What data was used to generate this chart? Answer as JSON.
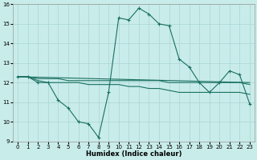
{
  "xlabel": "Humidex (Indice chaleur)",
  "background_color": "#c8ecea",
  "grid_color": "#aad4d2",
  "line_color": "#1a7060",
  "xlim": [
    -0.5,
    23.5
  ],
  "ylim": [
    9,
    16
  ],
  "yticks": [
    9,
    10,
    11,
    12,
    13,
    14,
    15,
    16
  ],
  "xticks": [
    0,
    1,
    2,
    3,
    4,
    5,
    6,
    7,
    8,
    9,
    10,
    11,
    12,
    13,
    14,
    15,
    16,
    17,
    18,
    19,
    20,
    21,
    22,
    23
  ],
  "series1_x": [
    0,
    1,
    2,
    3,
    4,
    5,
    6,
    7,
    8,
    9,
    10,
    11,
    12,
    13,
    14,
    15,
    16,
    17,
    18,
    19,
    20,
    21,
    22,
    23
  ],
  "series1_y": [
    12.3,
    12.3,
    12.0,
    12.0,
    11.1,
    10.7,
    10.0,
    9.9,
    9.2,
    11.5,
    15.3,
    15.2,
    15.8,
    15.5,
    15.0,
    14.9,
    13.2,
    12.8,
    12.0,
    11.5,
    12.0,
    12.6,
    12.4,
    10.9
  ],
  "series2_x": [
    0,
    1,
    2,
    3,
    4,
    5,
    6,
    7,
    8,
    9,
    10,
    11,
    12,
    13,
    14,
    15,
    16,
    17,
    18,
    19,
    20,
    21,
    22,
    23
  ],
  "series2_y": [
    12.3,
    12.3,
    12.1,
    12.0,
    12.0,
    12.0,
    12.0,
    11.9,
    11.9,
    11.9,
    11.9,
    11.8,
    11.8,
    11.7,
    11.7,
    11.6,
    11.5,
    11.5,
    11.5,
    11.5,
    11.5,
    11.5,
    11.5,
    11.4
  ],
  "series3_x": [
    0,
    23
  ],
  "series3_y": [
    12.3,
    12.0
  ],
  "series4_x": [
    0,
    1,
    2,
    3,
    4,
    5,
    6,
    7,
    8,
    9,
    10,
    11,
    12,
    13,
    14,
    15,
    16,
    17,
    18,
    19,
    20,
    21,
    22,
    23
  ],
  "series4_y": [
    12.3,
    12.3,
    12.2,
    12.2,
    12.2,
    12.1,
    12.1,
    12.1,
    12.1,
    12.1,
    12.1,
    12.1,
    12.1,
    12.1,
    12.1,
    12.0,
    12.0,
    12.0,
    12.0,
    12.0,
    12.0,
    12.0,
    12.0,
    11.9
  ],
  "title_fontsize": 6,
  "xlabel_fontsize": 6,
  "tick_fontsize": 5
}
